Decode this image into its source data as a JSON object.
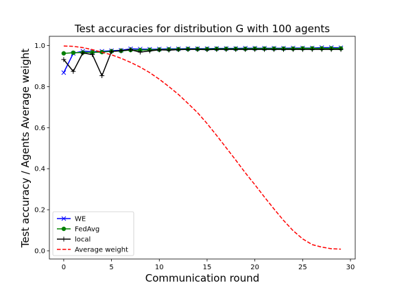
{
  "chart_data": {
    "type": "line",
    "title": "Test accuracies for distribution G with 100 agents",
    "xlabel": "Communication round",
    "ylabel": "Test accuracy / Agents Average weight",
    "xlim": [
      -1.5,
      30.5
    ],
    "ylim": [
      -0.04,
      1.045
    ],
    "xticks": [
      0,
      5,
      10,
      15,
      20,
      25,
      30
    ],
    "yticks": [
      0.0,
      0.2,
      0.4,
      0.6,
      0.8,
      1.0
    ],
    "xtick_labels": [
      "0",
      "5",
      "10",
      "15",
      "20",
      "25",
      "30"
    ],
    "ytick_labels": [
      "0.0",
      "0.2",
      "0.4",
      "0.6",
      "0.8",
      "1.0"
    ],
    "grid": false,
    "legend_position": "lower-left",
    "x": [
      0,
      1,
      2,
      3,
      4,
      5,
      6,
      7,
      8,
      9,
      10,
      11,
      12,
      13,
      14,
      15,
      16,
      17,
      18,
      19,
      20,
      21,
      22,
      23,
      24,
      25,
      26,
      27,
      28,
      29
    ],
    "series": [
      {
        "name": "WE",
        "color": "#0000ff",
        "marker": "x",
        "line_style": "solid",
        "values": [
          0.868,
          0.962,
          0.973,
          0.97,
          0.972,
          0.975,
          0.977,
          0.984,
          0.983,
          0.982,
          0.983,
          0.984,
          0.984,
          0.985,
          0.985,
          0.985,
          0.986,
          0.986,
          0.986,
          0.987,
          0.987,
          0.987,
          0.987,
          0.987,
          0.988,
          0.988,
          0.988,
          0.99,
          0.99,
          0.989
        ]
      },
      {
        "name": "FedAvg",
        "color": "#008000",
        "marker": "circle",
        "line_style": "solid",
        "values": [
          0.962,
          0.965,
          0.966,
          0.967,
          0.968,
          0.972,
          0.974,
          0.978,
          0.978,
          0.979,
          0.98,
          0.981,
          0.982,
          0.983,
          0.983,
          0.983,
          0.984,
          0.984,
          0.984,
          0.984,
          0.985,
          0.985,
          0.985,
          0.985,
          0.985,
          0.986,
          0.986,
          0.986,
          0.986,
          0.986
        ]
      },
      {
        "name": "local",
        "color": "#000000",
        "marker": "plus",
        "line_style": "solid",
        "values": [
          0.932,
          0.874,
          0.964,
          0.956,
          0.853,
          0.971,
          0.975,
          0.98,
          0.968,
          0.974,
          0.979,
          0.978,
          0.98,
          0.981,
          0.981,
          0.98,
          0.981,
          0.981,
          0.981,
          0.981,
          0.981,
          0.981,
          0.981,
          0.981,
          0.981,
          0.981,
          0.981,
          0.981,
          0.981,
          0.981
        ]
      },
      {
        "name": "Average weight",
        "color": "#ff0000",
        "marker": "none",
        "line_style": "dashed",
        "values": [
          0.998,
          0.996,
          0.99,
          0.98,
          0.967,
          0.955,
          0.938,
          0.918,
          0.895,
          0.868,
          0.836,
          0.8,
          0.762,
          0.718,
          0.673,
          0.62,
          0.562,
          0.502,
          0.442,
          0.38,
          0.322,
          0.262,
          0.204,
          0.148,
          0.098,
          0.058,
          0.03,
          0.018,
          0.01,
          0.008
        ]
      }
    ]
  }
}
